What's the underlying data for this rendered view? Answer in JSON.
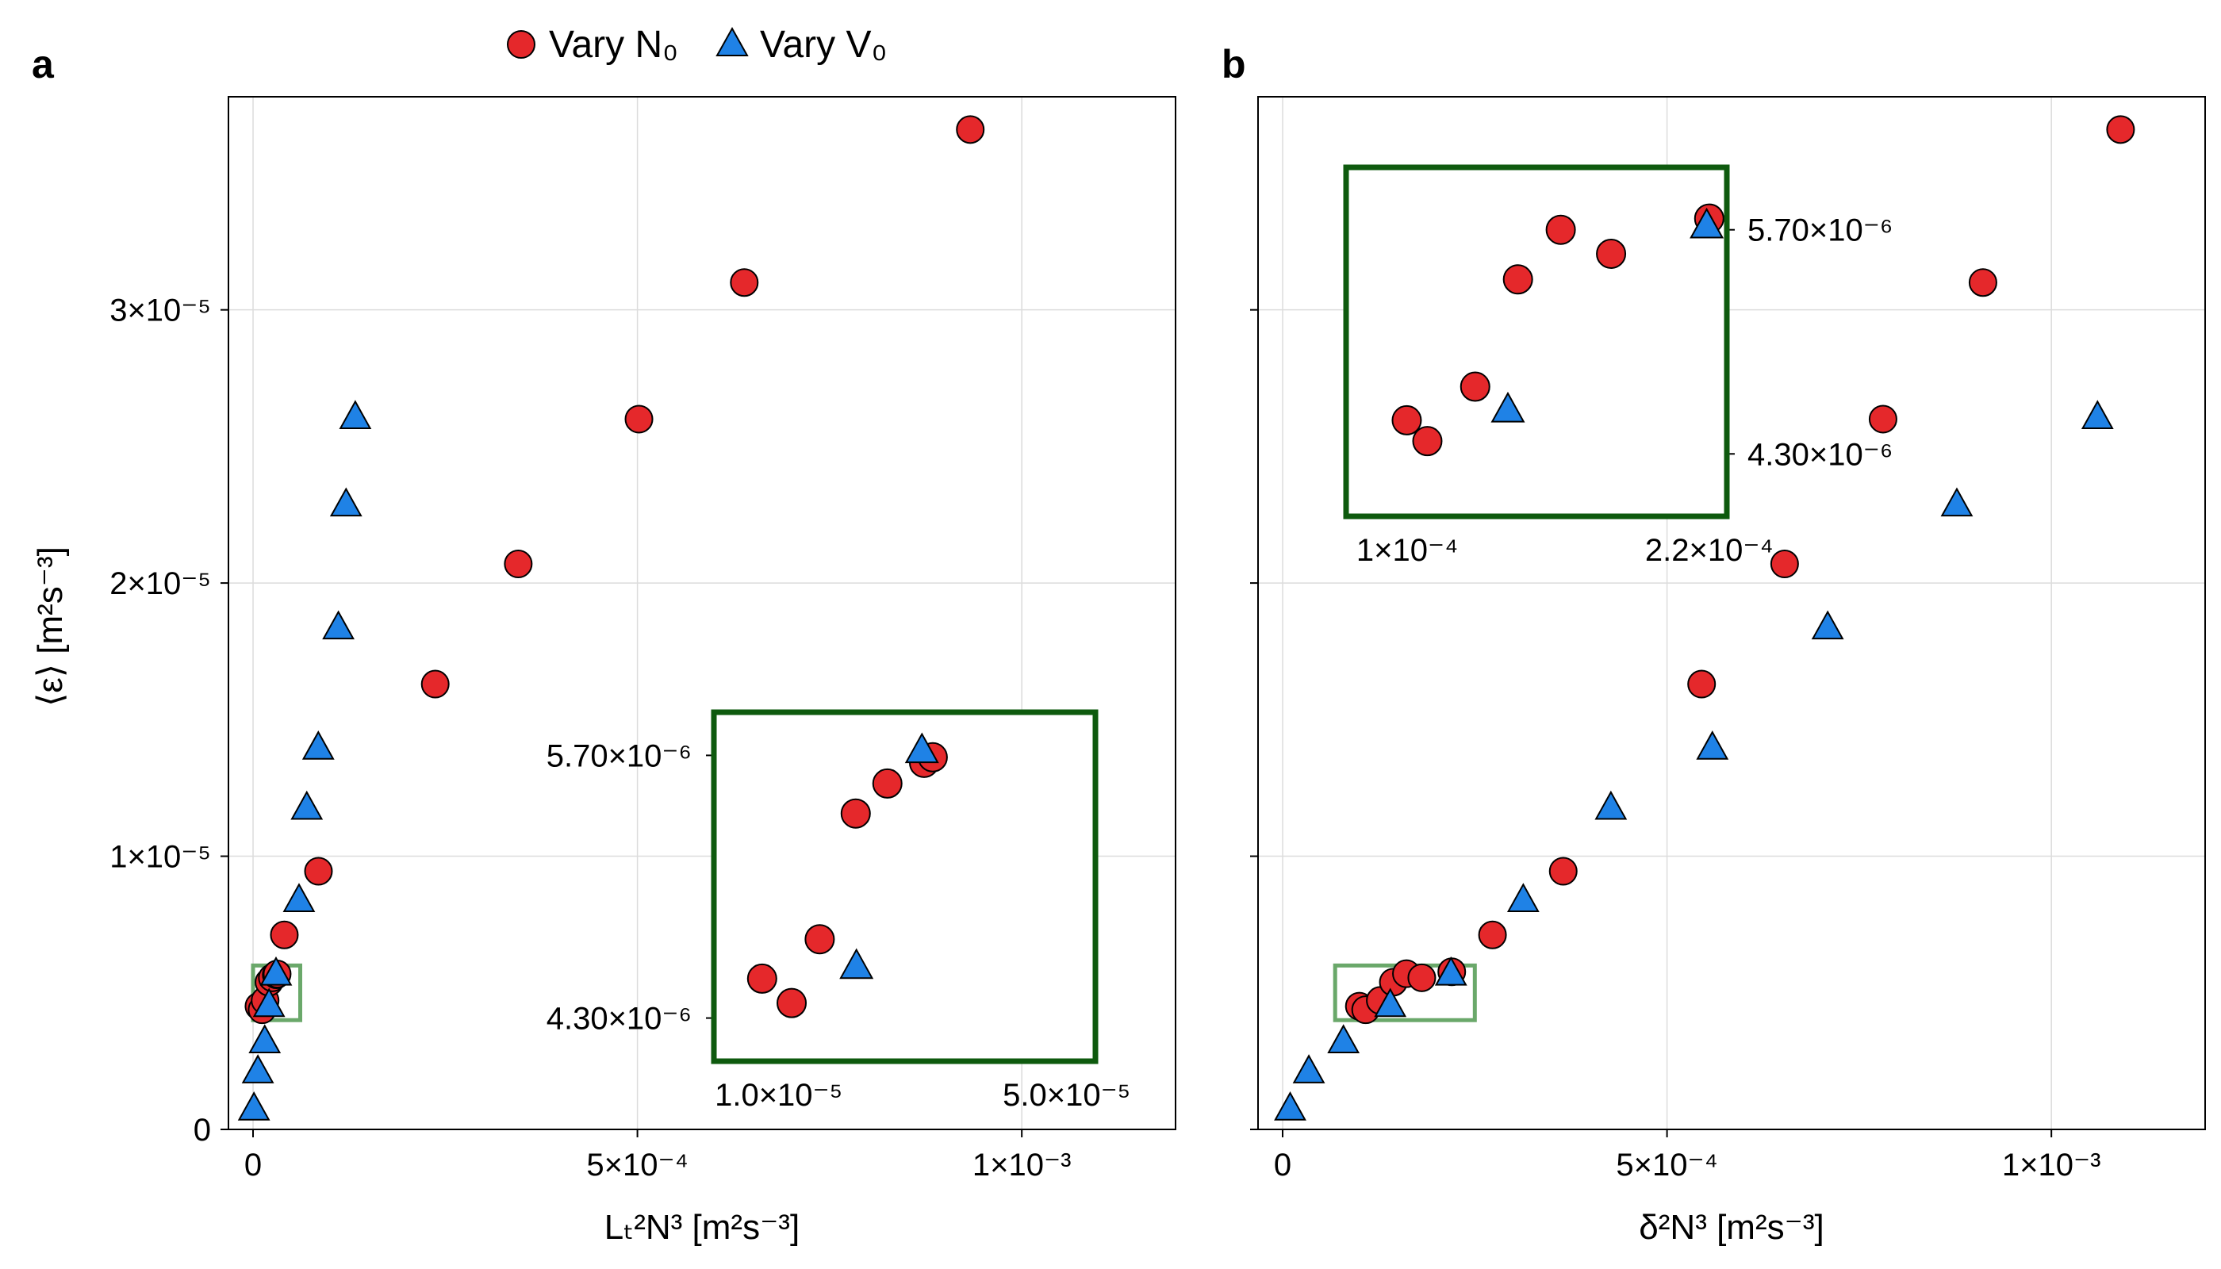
{
  "colors": {
    "vary_n0": "#e5282b",
    "vary_v0": "#1f82e6",
    "inset_frame": "#0e5a0e",
    "zoom_box": "#6aa86a"
  },
  "legend": {
    "n0_label": "Vary N₀",
    "v0_label": "Vary V₀"
  },
  "y_label": "⟨ε⟩ [m²s⁻³]",
  "chart_data": [
    {
      "type": "scatter",
      "panel_label": "a",
      "xlabel": "Lₜ²N³ [m²s⁻³]",
      "ylabel": "⟨ε⟩ [m²s⁻³]",
      "xlim": [
        -3.2e-05,
        0.0012
      ],
      "ylim": [
        0,
        3.78e-05
      ],
      "xticks": [
        {
          "value": 0,
          "label": "0"
        },
        {
          "value": 0.0005,
          "label": "5×10⁻⁴"
        },
        {
          "value": 0.001,
          "label": "1×10⁻³"
        }
      ],
      "yticks": [
        {
          "value": 0,
          "label": "0"
        },
        {
          "value": 1e-05,
          "label": "1×10⁻⁵"
        },
        {
          "value": 2e-05,
          "label": "2×10⁻⁵"
        },
        {
          "value": 3e-05,
          "label": "3×10⁻⁵"
        }
      ],
      "grid": true,
      "series": [
        {
          "name": "Vary N₀",
          "marker": "circle",
          "x": [
            7.7e-06,
            1.18e-05,
            1.57e-05,
            2.07e-05,
            2.51e-05,
            3.02e-05,
            3.14e-05,
            4.07e-05,
            8.51e-05,
            0.000237,
            0.000345,
            0.000502,
            0.000639,
            0.000933
          ],
          "y": [
            4.51e-06,
            4.38e-06,
            4.72e-06,
            5.39e-06,
            5.55e-06,
            5.66e-06,
            5.69e-06,
            7.12e-06,
            9.45e-06,
            1.63e-05,
            2.07e-05,
            2.6e-05,
            3.1e-05,
            3.66e-05
          ]
        },
        {
          "name": "Vary V₀",
          "marker": "triangle",
          "x": [
            1.2e-06,
            6.3e-06,
            1.52e-05,
            2.08e-05,
            2.99e-05,
            5.98e-05,
            6.99e-05,
            8.49e-05,
            0.000111,
            0.000121,
            0.000133
          ],
          "y": [
            7.9e-07,
            2.15e-06,
            3.25e-06,
            4.58e-06,
            5.73e-06,
            8.42e-06,
            1.18e-05,
            1.4e-05,
            1.84e-05,
            2.29e-05,
            2.61e-05
          ]
        }
      ],
      "zoom_box": {
        "x": [
          0,
          6.14e-05
        ],
        "y": [
          4e-06,
          6e-06
        ]
      },
      "inset": {
        "xlim": [
          1e-06,
          5.4e-05
        ],
        "ylim": [
          4.07e-06,
          5.93e-06
        ],
        "xticks": [
          {
            "value": 1e-05,
            "label": "1.0×10⁻⁵"
          },
          {
            "value": 5e-05,
            "label": "5.0×10⁻⁵"
          }
        ],
        "yticks": [
          {
            "value": 4.3e-06,
            "label": "4.30×10⁻⁶"
          },
          {
            "value": 5.7e-06,
            "label": "5.70×10⁻⁶"
          }
        ]
      }
    },
    {
      "type": "scatter",
      "panel_label": "b",
      "xlabel": "δ²N³ [m²s⁻³]",
      "ylabel": "",
      "xlim": [
        -3.2e-05,
        0.0012
      ],
      "ylim": [
        0,
        3.78e-05
      ],
      "xticks": [
        {
          "value": 0,
          "label": "0"
        },
        {
          "value": 0.0005,
          "label": "5×10⁻⁴"
        },
        {
          "value": 0.001,
          "label": "1×10⁻³"
        }
      ],
      "yticks": [
        {
          "value": 0,
          "label": ""
        },
        {
          "value": 1e-05,
          "label": ""
        },
        {
          "value": 2e-05,
          "label": ""
        },
        {
          "value": 3e-05,
          "label": ""
        }
      ],
      "grid": true,
      "series": [
        {
          "name": "Vary N₀",
          "marker": "circle",
          "x": [
            9.98e-05,
            0.000108,
            0.000127,
            0.000144,
            0.000161,
            0.000181,
            0.00022,
            0.000273,
            0.000365,
            0.000545,
            0.000653,
            0.000781,
            0.000911,
            0.00109
          ],
          "y": [
            4.51e-06,
            4.38e-06,
            4.72e-06,
            5.39e-06,
            5.7e-06,
            5.55e-06,
            5.77e-06,
            7.12e-06,
            9.45e-06,
            1.63e-05,
            2.07e-05,
            2.6e-05,
            3.1e-05,
            3.66e-05
          ]
        },
        {
          "name": "Vary V₀",
          "marker": "triangle",
          "x": [
            9.8e-06,
            3.41e-05,
            7.91e-05,
            0.00014,
            0.000219,
            0.000313,
            0.000427,
            0.000559,
            0.000709,
            0.000877,
            0.00106
          ],
          "y": [
            7.9e-07,
            2.15e-06,
            3.25e-06,
            4.58e-06,
            5.73e-06,
            8.42e-06,
            1.18e-05,
            1.4e-05,
            1.84e-05,
            2.29e-05,
            2.61e-05
          ]
        }
      ],
      "zoom_box": {
        "x": [
          6.83e-05,
          0.00025
        ],
        "y": [
          4e-06,
          6e-06
        ]
      },
      "inset": {
        "xlim": [
          7.57e-05,
          0.000227
        ],
        "ylim": [
          3.91e-06,
          6.09e-06
        ],
        "xticks": [
          {
            "value": 0.0001,
            "label": "1×10⁻⁴"
          },
          {
            "value": 0.00022,
            "label": "2.2×10⁻⁴"
          }
        ],
        "yticks": [
          {
            "value": 4.3e-06,
            "label": "4.30×10⁻⁶"
          },
          {
            "value": 5.7e-06,
            "label": "5.70×10⁻⁶"
          }
        ]
      }
    }
  ]
}
